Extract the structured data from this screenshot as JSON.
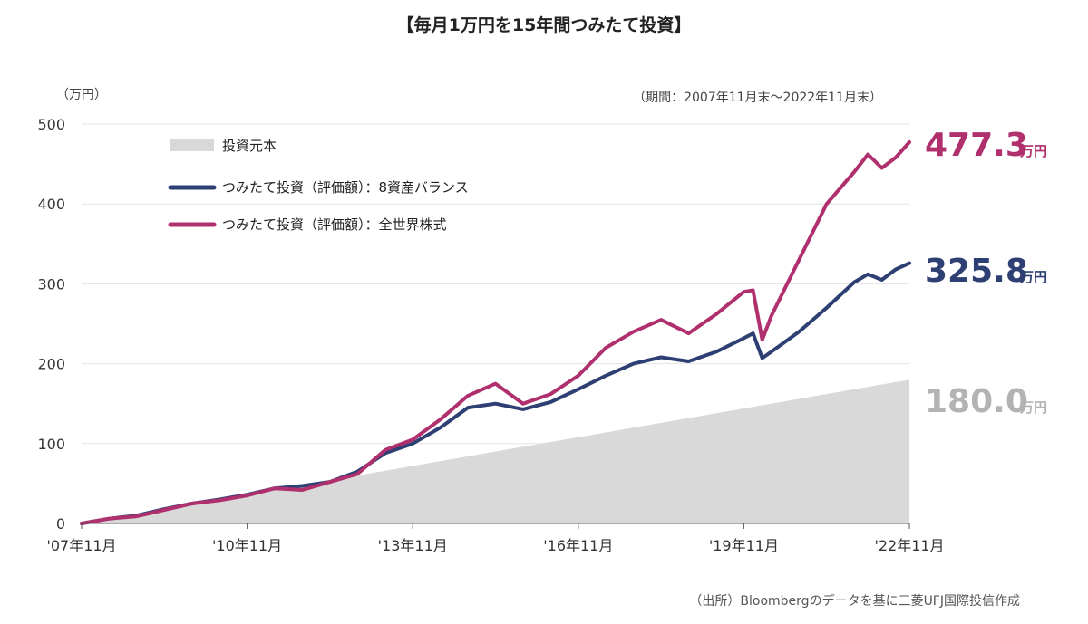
{
  "chart_data": {
    "type": "line",
    "title": "【毎月1万円を15年間つみたて投資】",
    "unit_label": "（万円）",
    "period_note": "（期間：2007年11月末〜2022年11月末）",
    "source_note": "（出所）Bloombergのデータを基に三菱UFJ国際投信作成",
    "y_ticks": [
      0,
      100,
      200,
      300,
      400,
      500
    ],
    "ylim": [
      0,
      500
    ],
    "x_range": [
      "2007-11",
      "2022-11"
    ],
    "x_tick_labels": [
      "'07年11月",
      "'10年11月",
      "'13年11月",
      "'16年11月",
      "'19年11月",
      "'22年11月"
    ],
    "x_tick_dates": [
      "2007-11",
      "2010-11",
      "2013-11",
      "2016-11",
      "2019-11",
      "2022-11"
    ],
    "grid": true,
    "legend_position": "top-left",
    "series": [
      {
        "name": "投資元本",
        "style": "area",
        "color": "#d9d9d9",
        "x": [
          "2007-11",
          "2022-11"
        ],
        "values": [
          0,
          180
        ]
      },
      {
        "name": "つみたて投資（評価額）：8資産バランス",
        "style": "line",
        "color": "#2e3f73",
        "x": [
          "2007-11",
          "2008-05",
          "2008-11",
          "2009-05",
          "2009-11",
          "2010-05",
          "2010-11",
          "2011-05",
          "2011-11",
          "2012-05",
          "2012-11",
          "2013-05",
          "2013-11",
          "2014-05",
          "2014-11",
          "2015-05",
          "2015-11",
          "2016-05",
          "2016-11",
          "2017-05",
          "2017-11",
          "2018-05",
          "2018-11",
          "2019-05",
          "2019-11",
          "2020-01",
          "2020-03",
          "2020-05",
          "2020-11",
          "2021-05",
          "2021-11",
          "2022-02",
          "2022-05",
          "2022-08",
          "2022-11"
        ],
        "values": [
          0,
          6,
          10,
          18,
          25,
          30,
          36,
          44,
          47,
          52,
          65,
          88,
          100,
          120,
          145,
          150,
          143,
          152,
          168,
          185,
          200,
          208,
          203,
          215,
          232,
          238,
          207,
          215,
          240,
          270,
          302,
          312,
          305,
          318,
          325.8
        ]
      },
      {
        "name": "つみたて投資（評価額）：全世界株式",
        "style": "line",
        "color": "#b0306e",
        "x": [
          "2007-11",
          "2008-05",
          "2008-11",
          "2009-05",
          "2009-11",
          "2010-05",
          "2010-11",
          "2011-05",
          "2011-11",
          "2012-05",
          "2012-11",
          "2013-05",
          "2013-11",
          "2014-05",
          "2014-11",
          "2015-05",
          "2015-11",
          "2016-05",
          "2016-11",
          "2017-05",
          "2017-11",
          "2018-05",
          "2018-11",
          "2019-05",
          "2019-11",
          "2020-01",
          "2020-03",
          "2020-05",
          "2020-11",
          "2021-05",
          "2021-11",
          "2022-02",
          "2022-05",
          "2022-08",
          "2022-11"
        ],
        "values": [
          0,
          6,
          9,
          17,
          25,
          29,
          35,
          44,
          42,
          52,
          62,
          92,
          105,
          130,
          160,
          175,
          150,
          162,
          185,
          220,
          240,
          255,
          238,
          262,
          290,
          292,
          230,
          260,
          330,
          400,
          440,
          462,
          445,
          458,
          477.3
        ]
      }
    ],
    "end_labels": [
      {
        "value": "477.3",
        "unit": "万円",
        "color": "#b0306e"
      },
      {
        "value": "325.8",
        "unit": "万円",
        "color": "#2e3f73"
      },
      {
        "value": "180.0",
        "unit": "万円",
        "color": "#b3b3b3"
      }
    ]
  }
}
